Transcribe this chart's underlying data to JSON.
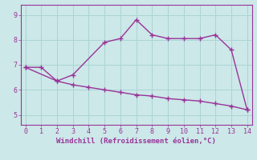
{
  "line1_x": [
    0,
    1,
    2,
    3,
    5,
    6,
    7,
    8,
    9,
    10,
    11,
    12,
    13,
    14
  ],
  "line1_y": [
    6.9,
    6.9,
    6.35,
    6.6,
    7.9,
    8.05,
    8.8,
    8.2,
    8.05,
    8.05,
    8.05,
    8.2,
    7.6,
    5.2
  ],
  "line2_x": [
    0,
    2,
    3,
    4,
    5,
    6,
    7,
    8,
    9,
    10,
    11,
    12,
    13,
    14
  ],
  "line2_y": [
    6.9,
    6.35,
    6.2,
    6.1,
    6.0,
    5.9,
    5.8,
    5.75,
    5.65,
    5.6,
    5.55,
    5.45,
    5.35,
    5.2
  ],
  "color": "#993399",
  "bg_color": "#cce8e8",
  "xlabel": "Windchill (Refroidissement éolien,°C)",
  "xlim": [
    -0.3,
    14.3
  ],
  "ylim": [
    4.6,
    9.4
  ],
  "xticks": [
    0,
    1,
    2,
    3,
    4,
    5,
    6,
    7,
    8,
    9,
    10,
    11,
    12,
    13,
    14
  ],
  "yticks": [
    5,
    6,
    7,
    8,
    9
  ],
  "grid_color": "#aad4d4",
  "line_width": 1.0,
  "marker": "+"
}
